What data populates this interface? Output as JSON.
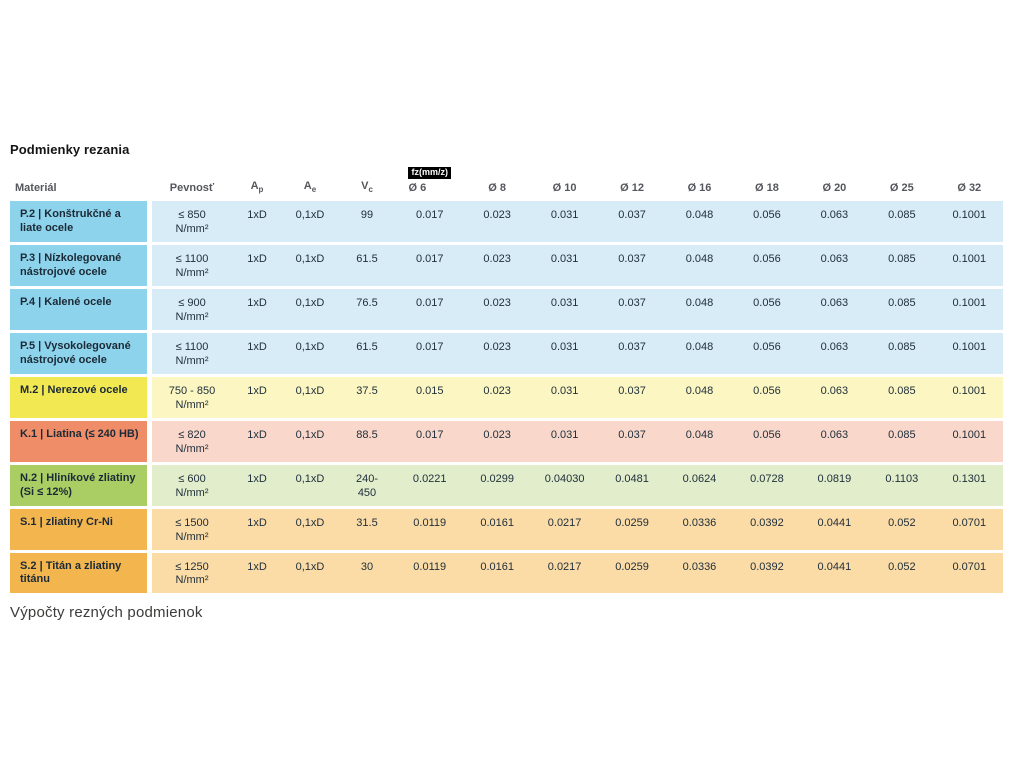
{
  "page": {
    "title": "Podmienky rezania",
    "footer_heading": "Výpočty rezných podmienok"
  },
  "table": {
    "header": {
      "material": "Materiál",
      "pevnost": "Pevnosť",
      "ap": {
        "base": "A",
        "sub": "p"
      },
      "ae": {
        "base": "A",
        "sub": "e"
      },
      "vc": {
        "base": "V",
        "sub": "c"
      },
      "fz_badge": "fz(mm/z)",
      "diameters": [
        "Ø 6",
        "Ø 8",
        "Ø 10",
        "Ø 12",
        "Ø 16",
        "Ø 18",
        "Ø 20",
        "Ø 25",
        "Ø 32"
      ]
    },
    "palette": {
      "P": {
        "label": "#8ed3ec",
        "row": "#d7ecf7"
      },
      "M": {
        "label": "#f2e851",
        "row": "#fcf6c2"
      },
      "K": {
        "label": "#f08d69",
        "row": "#f9d7ca"
      },
      "N": {
        "label": "#aacd64",
        "row": "#e2edcb"
      },
      "S": {
        "label": "#f3b54e",
        "row": "#fbdba6"
      }
    },
    "rows": [
      {
        "group": "P",
        "label": "P.2 | Konštrukčné a liate ocele",
        "pevnost": "≤ 850",
        "pevnost_unit": "N/mm²",
        "ap": "1xD",
        "ae": "0,1xD",
        "vc": "99",
        "fz": [
          "0.017",
          "0.023",
          "0.031",
          "0.037",
          "0.048",
          "0.056",
          "0.063",
          "0.085",
          "0.1001"
        ]
      },
      {
        "group": "P",
        "label": "P.3 | Nízkolegované nástrojové ocele",
        "pevnost": "≤ 1100",
        "pevnost_unit": "N/mm²",
        "ap": "1xD",
        "ae": "0,1xD",
        "vc": "61.5",
        "fz": [
          "0.017",
          "0.023",
          "0.031",
          "0.037",
          "0.048",
          "0.056",
          "0.063",
          "0.085",
          "0.1001"
        ]
      },
      {
        "group": "P",
        "label": "P.4 | Kalené ocele",
        "pevnost": "≤ 900",
        "pevnost_unit": "N/mm²",
        "ap": "1xD",
        "ae": "0,1xD",
        "vc": "76.5",
        "fz": [
          "0.017",
          "0.023",
          "0.031",
          "0.037",
          "0.048",
          "0.056",
          "0.063",
          "0.085",
          "0.1001"
        ]
      },
      {
        "group": "P",
        "label": "P.5 | Vysokolegované nástrojové ocele",
        "pevnost": "≤ 1100",
        "pevnost_unit": "N/mm²",
        "ap": "1xD",
        "ae": "0,1xD",
        "vc": "61.5",
        "fz": [
          "0.017",
          "0.023",
          "0.031",
          "0.037",
          "0.048",
          "0.056",
          "0.063",
          "0.085",
          "0.1001"
        ]
      },
      {
        "group": "M",
        "label": "M.2 | Nerezové ocele",
        "pevnost": "750 - 850",
        "pevnost_unit": "N/mm²",
        "ap": "1xD",
        "ae": "0,1xD",
        "vc": "37.5",
        "fz": [
          "0.015",
          "0.023",
          "0.031",
          "0.037",
          "0.048",
          "0.056",
          "0.063",
          "0.085",
          "0.1001"
        ]
      },
      {
        "group": "K",
        "label": "K.1 | Liatina (≤ 240 HB)",
        "pevnost": "≤ 820",
        "pevnost_unit": "N/mm²",
        "ap": "1xD",
        "ae": "0,1xD",
        "vc": "88.5",
        "fz": [
          "0.017",
          "0.023",
          "0.031",
          "0.037",
          "0.048",
          "0.056",
          "0.063",
          "0.085",
          "0.1001"
        ]
      },
      {
        "group": "N",
        "label": "N.2 | Hliníkové zliatiny (Si ≤ 12%)",
        "pevnost": "≤ 600",
        "pevnost_unit": "N/mm²",
        "ap": "1xD",
        "ae": "0,1xD",
        "vc": "240-\n450",
        "fz": [
          "0.0221",
          "0.0299",
          "0.04030",
          "0.0481",
          "0.0624",
          "0.0728",
          "0.0819",
          "0.1103",
          "0.1301"
        ]
      },
      {
        "group": "S",
        "label": "S.1 | zliatiny Cr-Ni",
        "pevnost": "≤ 1500",
        "pevnost_unit": "N/mm²",
        "ap": "1xD",
        "ae": "0,1xD",
        "vc": "31.5",
        "fz": [
          "0.0119",
          "0.0161",
          "0.0217",
          "0.0259",
          "0.0336",
          "0.0392",
          "0.0441",
          "0.052",
          "0.0701"
        ]
      },
      {
        "group": "S",
        "label": "S.2 | Titán a zliatiny titánu",
        "pevnost": "≤ 1250",
        "pevnost_unit": "N/mm²",
        "ap": "1xD",
        "ae": "0,1xD",
        "vc": "30",
        "fz": [
          "0.0119",
          "0.0161",
          "0.0217",
          "0.0259",
          "0.0336",
          "0.0392",
          "0.0441",
          "0.052",
          "0.0701"
        ]
      }
    ]
  }
}
